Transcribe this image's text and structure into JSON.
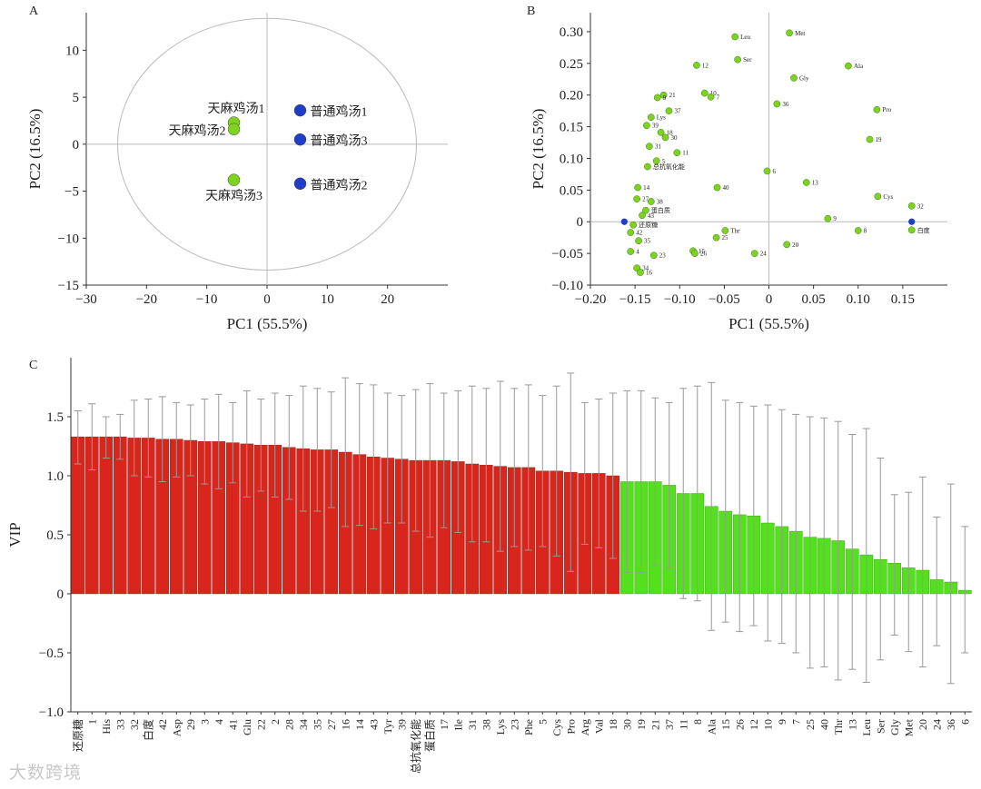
{
  "watermark": "大数跨境",
  "chart_data": [
    {
      "panel": "A",
      "type": "scatter",
      "title": "",
      "xlabel": "PC1 (55.5%)",
      "ylabel": "PC2 (16.5%)",
      "xlim": [
        -30,
        30
      ],
      "ylim": [
        -15,
        14
      ],
      "xticks": [
        -30,
        -20,
        -10,
        0,
        10,
        20
      ],
      "yticks": [
        -15,
        -10,
        -5,
        0,
        5,
        10
      ],
      "ellipse": {
        "cx": 0,
        "cy": 0,
        "rx": 24.8,
        "ry": 13.4
      },
      "points": [
        {
          "label": "天麻鸡汤1",
          "x": -5.5,
          "y": 2.3,
          "color": "#7ed321"
        },
        {
          "label": "天麻鸡汤2",
          "x": -5.5,
          "y": 1.6,
          "color": "#7ed321"
        },
        {
          "label": "天麻鸡汤3",
          "x": -5.5,
          "y": -3.8,
          "color": "#7ed321"
        },
        {
          "label": "普通鸡汤1",
          "x": 5.5,
          "y": 3.6,
          "color": "#1f3ec8"
        },
        {
          "label": "普通鸡汤3",
          "x": 5.5,
          "y": 0.5,
          "color": "#1f3ec8"
        },
        {
          "label": "普通鸡汤2",
          "x": 5.5,
          "y": -4.2,
          "color": "#1f3ec8"
        }
      ]
    },
    {
      "panel": "B",
      "type": "scatter",
      "title": "",
      "xlabel": "PC1 (55.5%)",
      "ylabel": "PC2 (16.5%)",
      "xlim": [
        -0.2,
        0.2
      ],
      "ylim": [
        -0.1,
        0.33
      ],
      "xticks": [
        -0.2,
        -0.15,
        -0.1,
        -0.05,
        0,
        0.05,
        0.1,
        0.15
      ],
      "yticks": [
        -0.1,
        -0.05,
        0,
        0.05,
        0.1,
        0.15,
        0.2,
        0.25,
        0.3
      ],
      "xtick_labels": [
        "−0.20",
        "−0.15",
        "−0.10",
        "−0.05",
        "0",
        "0.05",
        "0.10",
        "0.15"
      ],
      "ytick_labels": [
        "−0.10",
        "−0.05",
        "0",
        "0.05",
        "0.10",
        "0.15",
        "0.20",
        "0.25",
        "0.30"
      ],
      "points": [
        {
          "label": "Leu",
          "x": -0.038,
          "y": 0.292
        },
        {
          "label": "Met",
          "x": 0.023,
          "y": 0.298
        },
        {
          "label": "Ser",
          "x": -0.035,
          "y": 0.256
        },
        {
          "label": "12",
          "x": -0.081,
          "y": 0.247
        },
        {
          "label": "Ala",
          "x": 0.089,
          "y": 0.246
        },
        {
          "label": "Gly",
          "x": 0.028,
          "y": 0.227
        },
        {
          "label": "10",
          "x": -0.072,
          "y": 0.203
        },
        {
          "label": "7",
          "x": -0.065,
          "y": 0.197
        },
        {
          "label": "36",
          "x": 0.009,
          "y": 0.186
        },
        {
          "label": "Pro",
          "x": 0.121,
          "y": 0.177
        },
        {
          "label": "21",
          "x": -0.118,
          "y": 0.2
        },
        {
          "label": "9",
          "x": -0.125,
          "y": 0.196
        },
        {
          "label": "37",
          "x": -0.112,
          "y": 0.175
        },
        {
          "label": "Lys",
          "x": -0.132,
          "y": 0.165
        },
        {
          "label": "39",
          "x": -0.137,
          "y": 0.152
        },
        {
          "label": "18",
          "x": -0.121,
          "y": 0.141
        },
        {
          "label": "30",
          "x": -0.116,
          "y": 0.133
        },
        {
          "label": "19",
          "x": 0.113,
          "y": 0.13
        },
        {
          "label": "31",
          "x": -0.134,
          "y": 0.119
        },
        {
          "label": "11",
          "x": -0.103,
          "y": 0.109
        },
        {
          "label": "5",
          "x": -0.126,
          "y": 0.096
        },
        {
          "label": "总抗氧化能",
          "x": -0.136,
          "y": 0.087
        },
        {
          "label": "6",
          "x": -0.002,
          "y": 0.08
        },
        {
          "label": "13",
          "x": 0.042,
          "y": 0.062
        },
        {
          "label": "40",
          "x": -0.058,
          "y": 0.054
        },
        {
          "label": "14",
          "x": -0.147,
          "y": 0.054
        },
        {
          "label": "Cys",
          "x": 0.122,
          "y": 0.04
        },
        {
          "label": "27",
          "x": -0.148,
          "y": 0.036
        },
        {
          "label": "38",
          "x": -0.132,
          "y": 0.032
        },
        {
          "label": "32",
          "x": 0.16,
          "y": 0.025
        },
        {
          "label": "蛋白质",
          "x": -0.138,
          "y": 0.018
        },
        {
          "label": "43",
          "x": -0.142,
          "y": 0.01
        },
        {
          "label": "9",
          "x": 0.066,
          "y": 0.005
        },
        {
          "label": "还原糖",
          "x": -0.152,
          "y": -0.005
        },
        {
          "label": "8",
          "x": 0.1,
          "y": -0.014
        },
        {
          "label": "白度",
          "x": 0.16,
          "y": -0.013
        },
        {
          "label": "Thr",
          "x": -0.049,
          "y": -0.014
        },
        {
          "label": "42",
          "x": -0.155,
          "y": -0.017
        },
        {
          "label": "25",
          "x": -0.059,
          "y": -0.025
        },
        {
          "label": "35",
          "x": -0.146,
          "y": -0.03
        },
        {
          "label": "20",
          "x": 0.02,
          "y": -0.036
        },
        {
          "label": "4",
          "x": -0.155,
          "y": -0.047
        },
        {
          "label": "15",
          "x": -0.085,
          "y": -0.046
        },
        {
          "label": "26",
          "x": -0.083,
          "y": -0.05
        },
        {
          "label": "24",
          "x": -0.016,
          "y": -0.05
        },
        {
          "label": "23",
          "x": -0.129,
          "y": -0.053
        },
        {
          "label": "34",
          "x": -0.148,
          "y": -0.073
        },
        {
          "label": "16",
          "x": -0.144,
          "y": -0.08
        }
      ],
      "blue_points": [
        {
          "label": "",
          "x": -0.162,
          "y": 0.0
        },
        {
          "label": "",
          "x": 0.16,
          "y": 0.0
        }
      ]
    },
    {
      "panel": "C",
      "type": "bar",
      "title": "",
      "xlabel": "",
      "ylabel": "VIP",
      "ylim": [
        -1.0,
        2.0
      ],
      "yticks": [
        -1.0,
        -0.5,
        0,
        0.5,
        1.0,
        1.5
      ],
      "ytick_labels": [
        "−1.0",
        "−0.5",
        "0",
        "0.5",
        "1.0",
        "1.5"
      ],
      "threshold": 1.0,
      "categories": [
        "还原糖",
        "1",
        "His",
        "33",
        "32",
        "白度",
        "42",
        "Asp",
        "29",
        "3",
        "4",
        "41",
        "Glu",
        "22",
        "2",
        "28",
        "34",
        "35",
        "27",
        "16",
        "14",
        "43",
        "Tyr",
        "39",
        "总抗氧化能",
        "蛋白质",
        "17",
        "Ile",
        "31",
        "38",
        "Lys",
        "23",
        "Phe",
        "5",
        "Cys",
        "Pro",
        "Arg",
        "Val",
        "18",
        "30",
        "19",
        "21",
        "37",
        "11",
        "8",
        "Ala",
        "15",
        "26",
        "12",
        "10",
        "9",
        "7",
        "25",
        "40",
        "Thr",
        "13",
        "Leu",
        "Ser",
        "Gly",
        "Met",
        "20",
        "24",
        "36",
        "6"
      ],
      "values": [
        1.33,
        1.33,
        1.33,
        1.33,
        1.32,
        1.32,
        1.31,
        1.31,
        1.3,
        1.29,
        1.29,
        1.28,
        1.27,
        1.26,
        1.26,
        1.24,
        1.23,
        1.22,
        1.22,
        1.2,
        1.18,
        1.16,
        1.15,
        1.14,
        1.13,
        1.13,
        1.13,
        1.12,
        1.1,
        1.09,
        1.08,
        1.07,
        1.07,
        1.04,
        1.04,
        1.03,
        1.02,
        1.02,
        1.0,
        0.95,
        0.95,
        0.95,
        0.92,
        0.85,
        0.85,
        0.74,
        0.7,
        0.67,
        0.66,
        0.6,
        0.57,
        0.53,
        0.48,
        0.47,
        0.45,
        0.38,
        0.33,
        0.29,
        0.26,
        0.22,
        0.2,
        0.12,
        0.1,
        0.03
      ],
      "error_upper": [
        1.55,
        1.61,
        1.5,
        1.52,
        1.64,
        1.65,
        1.67,
        1.62,
        1.6,
        1.65,
        1.69,
        1.62,
        1.72,
        1.65,
        1.7,
        1.68,
        1.76,
        1.74,
        1.71,
        1.83,
        1.78,
        1.77,
        1.7,
        1.68,
        1.73,
        1.78,
        1.7,
        1.72,
        1.76,
        1.74,
        1.8,
        1.74,
        1.77,
        1.68,
        1.76,
        1.87,
        1.62,
        1.65,
        1.7,
        1.72,
        1.72,
        1.66,
        1.62,
        1.74,
        1.76,
        1.79,
        1.64,
        1.62,
        1.59,
        1.6,
        1.56,
        1.52,
        1.5,
        1.49,
        1.46,
        1.35,
        1.4,
        1.15,
        0.84,
        0.86,
        0.99,
        0.65,
        0.93,
        0.57
      ],
      "error_lower": [
        1.1,
        1.05,
        1.15,
        1.14,
        1.0,
        0.99,
        0.95,
        0.99,
        1.0,
        0.93,
        0.89,
        0.94,
        0.82,
        0.87,
        0.82,
        0.8,
        0.7,
        0.7,
        0.73,
        0.57,
        0.58,
        0.55,
        0.6,
        0.6,
        0.53,
        0.48,
        0.56,
        0.52,
        0.44,
        0.44,
        0.36,
        0.4,
        0.37,
        0.4,
        0.32,
        0.19,
        0.42,
        0.39,
        0.3,
        0.18,
        0.18,
        0.24,
        0.22,
        -0.04,
        -0.06,
        -0.31,
        -0.24,
        -0.32,
        -0.27,
        -0.4,
        -0.42,
        -0.5,
        -0.63,
        -0.62,
        -0.73,
        -0.64,
        -0.75,
        -0.56,
        -0.35,
        -0.49,
        -0.62,
        -0.44,
        -0.76,
        -0.5
      ],
      "colors": {
        "above": "#d9261c",
        "below": "#55e01e",
        "error": "#999999"
      }
    }
  ]
}
